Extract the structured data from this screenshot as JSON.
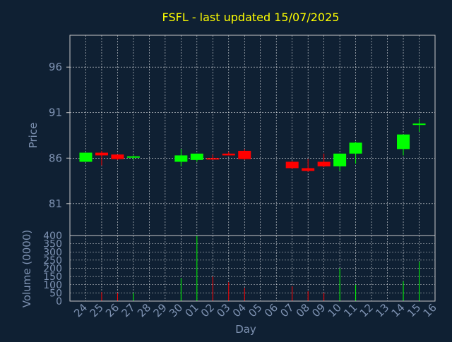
{
  "chart_data": {
    "type": "candlestick",
    "title": "FSFL - last updated 15/07/2025",
    "xlabel": "Day",
    "price_panel": {
      "ylabel": "Price",
      "ylim": [
        77.5,
        99.5
      ],
      "yticks": [
        81,
        86,
        91,
        96
      ],
      "grid": true
    },
    "volume_panel": {
      "ylabel": "Volume (0000)",
      "ylim": [
        0,
        400
      ],
      "yticks": [
        0,
        50,
        100,
        150,
        200,
        250,
        300,
        350,
        400
      ],
      "grid": true
    },
    "x_tick_labels": [
      "24",
      "25",
      "26",
      "27",
      "28",
      "29",
      "30",
      "01",
      "02",
      "03",
      "04",
      "05",
      "06",
      "07",
      "08",
      "09",
      "10",
      "11",
      "12",
      "13",
      "14",
      "15",
      "16"
    ],
    "colors": {
      "up": "#00ff00",
      "down": "#ff0000",
      "title": "#ffff00",
      "background": "#0f2033",
      "axis_text": "#7f93b3"
    },
    "candles": [
      {
        "day": "24",
        "open": 85.6,
        "high": 86.6,
        "low": 85.6,
        "close": 86.6,
        "volume": 0
      },
      {
        "day": "25",
        "open": 86.6,
        "high": 86.8,
        "low": 85.2,
        "close": 86.3,
        "volume": 55
      },
      {
        "day": "26",
        "open": 86.4,
        "high": 86.4,
        "low": 85.8,
        "close": 85.9,
        "volume": 50
      },
      {
        "day": "27",
        "open": 86.1,
        "high": 86.3,
        "low": 85.8,
        "close": 86.2,
        "volume": 50
      },
      {
        "day": "30",
        "open": 85.6,
        "high": 87.0,
        "low": 85.1,
        "close": 86.3,
        "volume": 140
      },
      {
        "day": "01",
        "open": 85.8,
        "high": 86.5,
        "low": 85.6,
        "close": 86.5,
        "volume": 400
      },
      {
        "day": "02",
        "open": 86.0,
        "high": 86.4,
        "low": 85.8,
        "close": 85.9,
        "volume": 150
      },
      {
        "day": "03",
        "open": 86.5,
        "high": 86.7,
        "low": 86.3,
        "close": 86.3,
        "volume": 115
      },
      {
        "day": "04",
        "open": 86.8,
        "high": 87.0,
        "low": 85.8,
        "close": 85.9,
        "volume": 80
      },
      {
        "day": "07",
        "open": 85.6,
        "high": 85.7,
        "low": 84.8,
        "close": 84.9,
        "volume": 90
      },
      {
        "day": "08",
        "open": 84.9,
        "high": 85.9,
        "low": 84.5,
        "close": 84.6,
        "volume": 60
      },
      {
        "day": "09",
        "open": 85.6,
        "high": 86.5,
        "low": 85.0,
        "close": 85.1,
        "volume": 50
      },
      {
        "day": "10",
        "open": 85.1,
        "high": 86.5,
        "low": 84.6,
        "close": 86.5,
        "volume": 200
      },
      {
        "day": "11",
        "open": 86.5,
        "high": 87.8,
        "low": 85.4,
        "close": 87.7,
        "volume": 100
      },
      {
        "day": "14",
        "open": 87.0,
        "high": 88.6,
        "low": 86.3,
        "close": 88.6,
        "volume": 120
      },
      {
        "day": "15",
        "open": 89.7,
        "high": 90.3,
        "low": 88.9,
        "close": 89.8,
        "volume": 240
      }
    ]
  }
}
